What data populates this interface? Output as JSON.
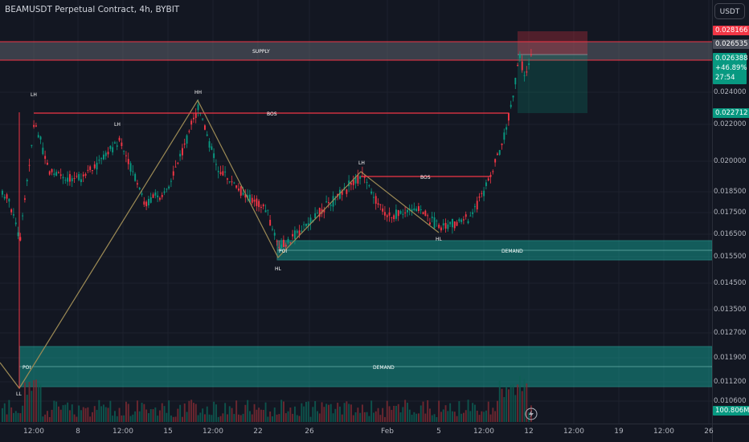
{
  "header": {
    "title": "BEAMUSDT Perpetual Contract, 4h, BYBIT",
    "currency_button": "USDT"
  },
  "price_axis": {
    "ticks": [
      "0.024000",
      "0.022000",
      "0.020000",
      "0.018500",
      "0.017500",
      "0.016500",
      "0.015500",
      "0.014500",
      "0.013500",
      "0.012700",
      "0.011900",
      "0.011200",
      "0.010600"
    ],
    "labels": {
      "target": "0.028166",
      "entry": "0.026535",
      "last": "0.026388",
      "change": "+46.89%",
      "countdown": "27:54",
      "stop": "0.022712",
      "volume": "100.806M"
    },
    "colors": {
      "target": "#f23645",
      "entry": "#4a4e5a",
      "last": "#089981",
      "stop": "#089981",
      "volume": "#089981"
    }
  },
  "time_axis": {
    "ticks": [
      "12:00",
      "8",
      "12:00",
      "15",
      "12:00",
      "22",
      "26",
      "Feb",
      "5",
      "12:00",
      "12",
      "12:00",
      "19",
      "12:00",
      "26"
    ]
  },
  "annotations": {
    "supply": "SUPPLY",
    "demand_upper": "DEMAND",
    "demand_lower": "DEMAND",
    "bos": [
      "BOS",
      "BOS"
    ],
    "poi": [
      "POI",
      "POI"
    ],
    "swing": [
      "LH",
      "LH",
      "HH",
      "LH",
      "HL",
      "HL",
      "LL"
    ]
  },
  "colors": {
    "up": "#089981",
    "down": "#f23645",
    "zigzag": "#9c8a55",
    "bos": "#f23645",
    "supply_border": "#f23645",
    "demand": "#14968a"
  }
}
